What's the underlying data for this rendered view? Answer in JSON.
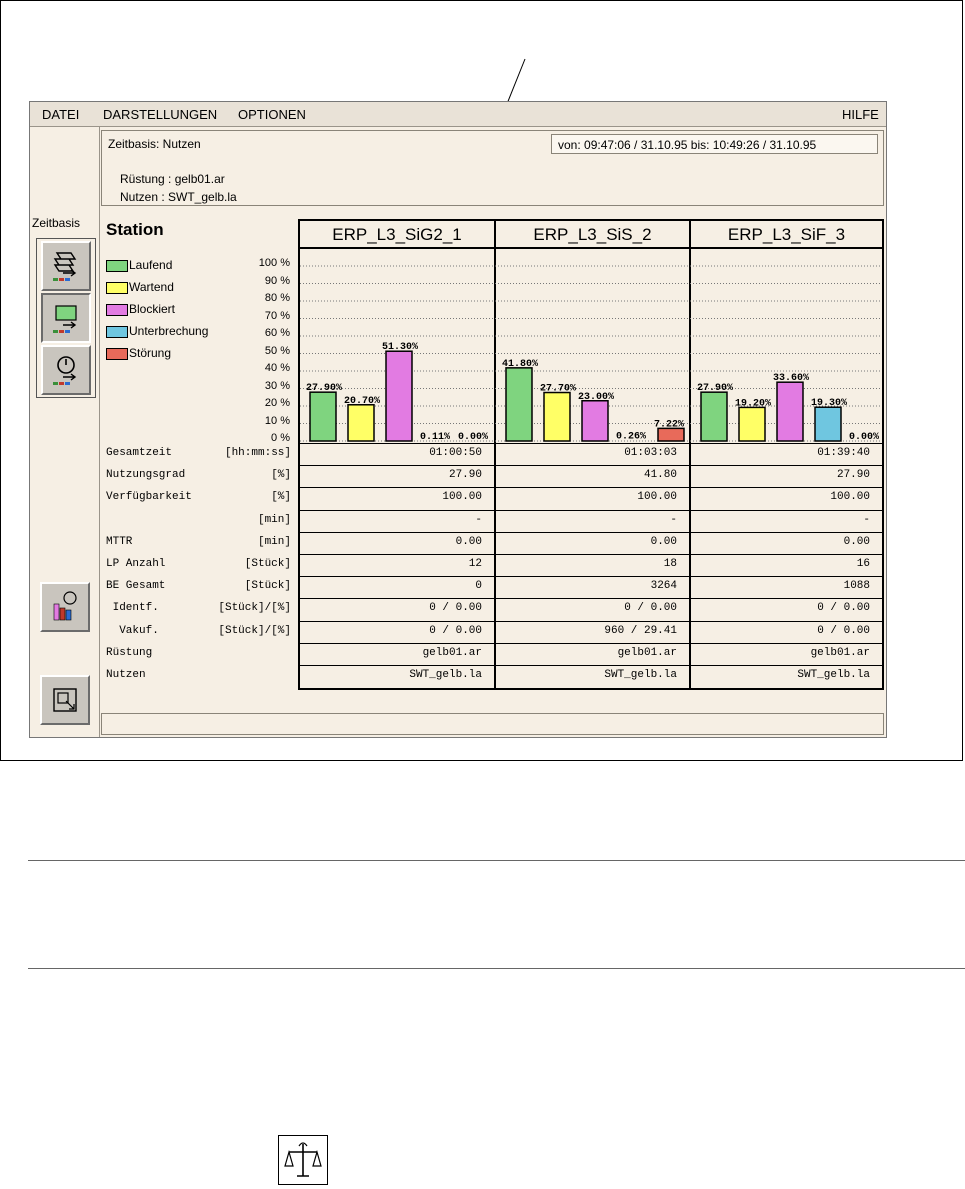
{
  "menu": {
    "file": "DATEI",
    "views": "DARSTELLUNGEN",
    "options": "OPTIONEN",
    "help": "HILFE"
  },
  "toolbar": {
    "zeitbasis_label": "Zeitbasis"
  },
  "info": {
    "zeitbasis": "Zeitbasis:  Nutzen",
    "range": "von: 09:47:06 /  31.10.95   bis: 10:49:26 /  31.10.95",
    "ruestung": "Rüstung :  gelb01.ar",
    "nutzen": "Nutzen  :  SWT_gelb.la"
  },
  "station_label": "Station",
  "legend": [
    {
      "label": "Laufend",
      "color": "#7fd47f"
    },
    {
      "label": "Wartend",
      "color": "#ffff66"
    },
    {
      "label": "Blockiert",
      "color": "#e27be2"
    },
    {
      "label": "Unterbrechung",
      "color": "#6fc6e0"
    },
    {
      "label": "Störung",
      "color": "#e86a5a"
    }
  ],
  "yticks": [
    "100 %",
    "90 %",
    "80 %",
    "70 %",
    "60 %",
    "50 %",
    "40 %",
    "30 %",
    "20 %",
    "10 %",
    "0 %"
  ],
  "chart_data": {
    "type": "bar",
    "ylim": [
      0,
      100
    ],
    "categories": [
      "ERP_L3_SiG2_1",
      "ERP_L3_SiS_2",
      "ERP_L3_SiF_3"
    ],
    "series": [
      {
        "name": "Laufend",
        "values": [
          27.9,
          41.8,
          27.9
        ]
      },
      {
        "name": "Wartend",
        "values": [
          20.7,
          27.7,
          19.2
        ]
      },
      {
        "name": "Blockiert",
        "values": [
          51.3,
          23.0,
          33.6
        ]
      },
      {
        "name": "Unterbrechung",
        "values": [
          0.11,
          0.26,
          19.3
        ]
      },
      {
        "name": "Störung",
        "values": [
          0.0,
          7.22,
          0.0
        ]
      }
    ],
    "value_labels": [
      [
        "27.90%",
        "20.70%",
        "51.30%",
        "0.11%",
        "0.00%"
      ],
      [
        "41.80%",
        "27.70%",
        "23.00%",
        "0.26%",
        "7.22%"
      ],
      [
        "27.90%",
        "19.20%",
        "33.60%",
        "19.30%",
        "0.00%"
      ]
    ]
  },
  "table": {
    "rows": [
      {
        "label": "Gesamtzeit",
        "unit": "[hh:mm:ss]",
        "values": [
          "01:00:50",
          "01:03:03",
          "01:39:40"
        ]
      },
      {
        "label": "Nutzungsgrad",
        "unit": "[%]",
        "values": [
          "27.90",
          "41.80",
          "27.90"
        ]
      },
      {
        "label": "Verfügbarkeit",
        "unit": "[%]",
        "values": [
          "100.00",
          "100.00",
          "100.00"
        ]
      },
      {
        "label": "",
        "unit": "[min]",
        "values": [
          "-",
          "-",
          "-"
        ]
      },
      {
        "label": "MTTR",
        "unit": "[min]",
        "values": [
          "0.00",
          "0.00",
          "0.00"
        ]
      },
      {
        "label": "LP Anzahl",
        "unit": "[Stück]",
        "values": [
          "12",
          "18",
          "16"
        ]
      },
      {
        "label": "BE Gesamt",
        "unit": "[Stück]",
        "values": [
          "0",
          "3264",
          "1088"
        ]
      },
      {
        "label": " Identf.",
        "unit": "[Stück]/[%]",
        "values": [
          "0 / 0.00",
          "0 / 0.00",
          "0 / 0.00"
        ]
      },
      {
        "label": "  Vakuf.",
        "unit": "[Stück]/[%]",
        "values": [
          "0 / 0.00",
          "960 / 29.41",
          "0 / 0.00"
        ]
      },
      {
        "label": "Rüstung",
        "unit": "",
        "values": [
          "gelb01.ar",
          "gelb01.ar",
          "gelb01.ar"
        ]
      },
      {
        "label": "Nutzen",
        "unit": "",
        "values": [
          "SWT_gelb.la",
          "SWT_gelb.la",
          "SWT_gelb.la"
        ]
      }
    ]
  }
}
